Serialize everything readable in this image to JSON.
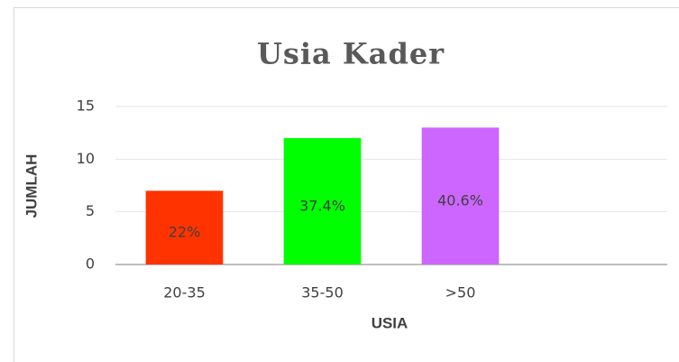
{
  "chart_data": {
    "type": "bar",
    "title": "Usia Kader",
    "x_label": "USIA",
    "y_label": "JUMLAH",
    "categories": [
      "20-35",
      "35-50",
      ">50",
      null
    ],
    "series": [
      {
        "colors": [
          "#ff3300",
          "#00ff00",
          "#cc66ff",
          null
        ],
        "values": [
          7,
          12,
          13,
          null
        ],
        "data_labels": [
          "22%",
          "37.4%",
          "40.6%",
          null
        ]
      }
    ],
    "ylim": [
      0,
      15
    ],
    "yticks": [
      0,
      5,
      10,
      15
    ],
    "grid": true
  }
}
